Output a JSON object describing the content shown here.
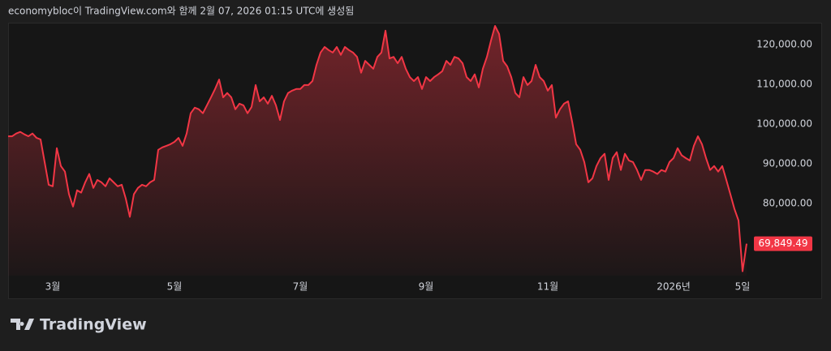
{
  "header": "economybloc이 TradingView.com와 함께 2월 07, 2026 01:15 UTC에 생성됨",
  "logo": "TradingView",
  "chart_data": {
    "type": "area",
    "color": "#f23645",
    "values": [
      96900,
      96900,
      97600,
      98000,
      97400,
      96900,
      97600,
      96500,
      96100,
      90400,
      84700,
      84300,
      93900,
      89400,
      88000,
      82300,
      79200,
      83300,
      82700,
      85300,
      87400,
      83900,
      85900,
      85300,
      84300,
      86300,
      85300,
      84300,
      84700,
      81200,
      76600,
      82300,
      83900,
      84700,
      84300,
      85300,
      85900,
      93500,
      94100,
      94500,
      94900,
      95500,
      96500,
      94500,
      97600,
      102700,
      104100,
      103700,
      102700,
      104700,
      106700,
      108800,
      111200,
      106700,
      107800,
      106700,
      103700,
      105100,
      104700,
      102700,
      104300,
      109800,
      105700,
      106700,
      105100,
      107100,
      104700,
      101000,
      105700,
      107800,
      108400,
      108800,
      108800,
      109800,
      109800,
      110800,
      114900,
      118000,
      119400,
      118600,
      118000,
      119400,
      117400,
      119400,
      118600,
      118000,
      116900,
      112900,
      115900,
      114900,
      113900,
      116900,
      118000,
      123500,
      116500,
      116900,
      115300,
      116900,
      113900,
      111800,
      110800,
      111800,
      108800,
      111800,
      110800,
      111800,
      112500,
      113300,
      115900,
      114900,
      116900,
      116500,
      115300,
      111800,
      110800,
      112500,
      109200,
      113900,
      116900,
      121000,
      124700,
      122700,
      115900,
      114500,
      111800,
      107800,
      106700,
      111800,
      109800,
      110800,
      114900,
      111800,
      110800,
      108400,
      109800,
      101600,
      103700,
      105100,
      105700,
      100600,
      94900,
      93500,
      90400,
      85300,
      86300,
      89400,
      91400,
      92500,
      85900,
      91400,
      92900,
      88400,
      92500,
      90800,
      90400,
      88400,
      85900,
      88400,
      88400,
      88000,
      87400,
      88400,
      88000,
      90400,
      91400,
      93900,
      92100,
      91400,
      90800,
      94500,
      96900,
      94900,
      91400,
      88400,
      89400,
      88000,
      89400,
      85900,
      82300,
      78600,
      75700,
      62900,
      69849.49
    ],
    "xlim": [
      0,
      182
    ],
    "xticks": [
      {
        "value": 11,
        "label": "3월"
      },
      {
        "value": 41,
        "label": "5월"
      },
      {
        "value": 72,
        "label": "7월"
      },
      {
        "value": 103,
        "label": "9월"
      },
      {
        "value": 133,
        "label": "11월"
      },
      {
        "value": 164,
        "label": "2026년"
      },
      {
        "value": 181,
        "label": "5일"
      }
    ],
    "ylim": [
      61800,
      125100
    ],
    "yticks": [
      {
        "value": 80000,
        "label": "80,000.00"
      },
      {
        "value": 90000,
        "label": "90,000.00"
      },
      {
        "value": 100000,
        "label": "100,000.00"
      },
      {
        "value": 110000,
        "label": "110,000.00"
      },
      {
        "value": 120000,
        "label": "120,000.00"
      }
    ],
    "last_price": {
      "value": 69849.49,
      "label": "69,849.49"
    },
    "grid": false
  }
}
